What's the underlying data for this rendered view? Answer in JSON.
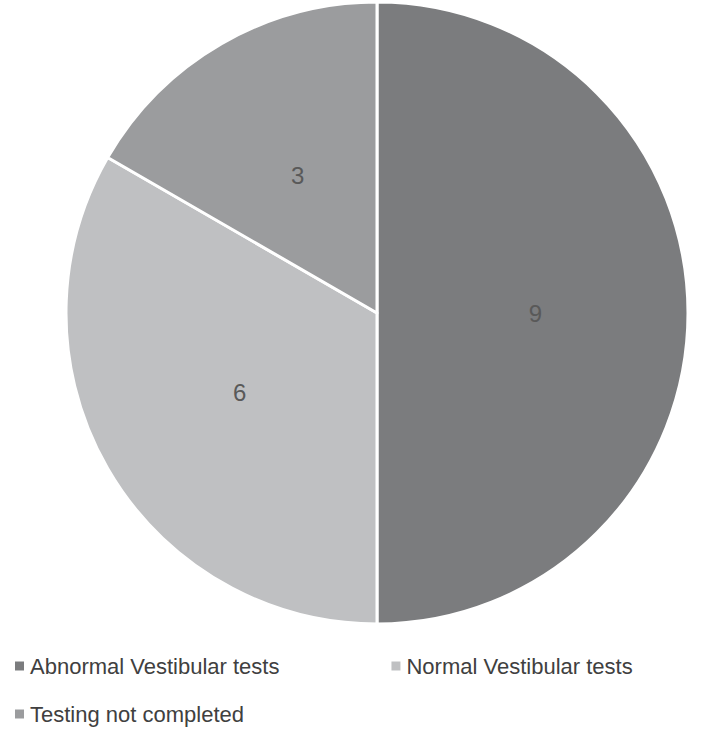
{
  "chart_data": {
    "type": "pie",
    "categories": [
      "Abnormal Vestibular tests",
      "Normal Vestibular tests",
      "Testing not completed"
    ],
    "values": [
      9,
      6,
      3
    ],
    "colors": [
      "#7b7c7e",
      "#bfc0c2",
      "#9b9c9e"
    ],
    "data_labels": true,
    "legend": "bottom"
  }
}
